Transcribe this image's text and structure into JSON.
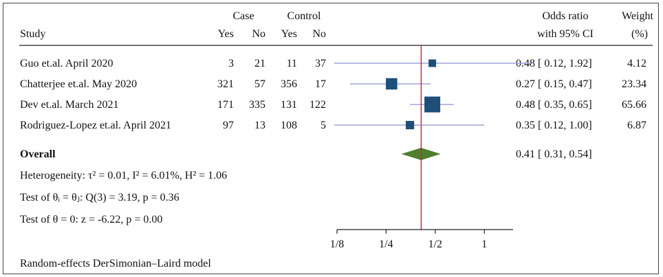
{
  "chart_data": {
    "type": "forest",
    "headers": {
      "study": "Study",
      "case": "Case",
      "control": "Control",
      "yes": "Yes",
      "no": "No",
      "or_line1": "Odds ratio",
      "or_line2": "with 95% CI",
      "weight_line1": "Weight",
      "weight_line2": "(%)"
    },
    "studies": [
      {
        "name": "Guo et.al. April 2020",
        "case_yes": "3",
        "case_no": "21",
        "ctrl_yes": "11",
        "ctrl_no": "37",
        "or": 0.48,
        "lo": 0.12,
        "hi": 1.92,
        "ci_text": "0.48 [ 0.12, 1.92]",
        "weight": 4.12,
        "weight_text": "4.12"
      },
      {
        "name": "Chatterjee et.al. May 2020",
        "case_yes": "321",
        "case_no": "57",
        "ctrl_yes": "356",
        "ctrl_no": "17",
        "or": 0.27,
        "lo": 0.15,
        "hi": 0.47,
        "ci_text": "0.27 [ 0.15, 0.47]",
        "weight": 23.34,
        "weight_text": "23.34"
      },
      {
        "name": "Dev et.al. March 2021",
        "case_yes": "171",
        "case_no": "335",
        "ctrl_yes": "131",
        "ctrl_no": "122",
        "or": 0.48,
        "lo": 0.35,
        "hi": 0.65,
        "ci_text": "0.48 [ 0.35, 0.65]",
        "weight": 65.66,
        "weight_text": "65.66"
      },
      {
        "name": "Rodriguez-Lopez et.al. April 2021",
        "case_yes": "97",
        "case_no": "13",
        "ctrl_yes": "108",
        "ctrl_no": "5",
        "or": 0.35,
        "lo": 0.12,
        "hi": 1.0,
        "ci_text": "0.35 [ 0.12, 1.00]",
        "weight": 6.87,
        "weight_text": "6.87"
      }
    ],
    "overall": {
      "label": "Overall",
      "or": 0.41,
      "lo": 0.31,
      "hi": 0.54,
      "ci_text": "0.41 [ 0.31, 0.54]"
    },
    "stats": {
      "heterogeneity": "Heterogeneity: τ² = 0.01, I² = 6.01%, H² = 1.06",
      "test_theta_i": "Test of θᵢ = θⱼ: Q(3) = 3.19, p = 0.36",
      "test_theta_0": "Test of θ = 0: z = -6.22, p = 0.00"
    },
    "x_scale": "log",
    "xlim": [
      0.125,
      1.5
    ],
    "xticks": [
      0.125,
      0.25,
      0.5,
      1
    ],
    "xtick_labels": [
      "1/8",
      "1/4",
      "1/2",
      "1"
    ],
    "reference_line": 0.41,
    "footer": "Random-effects DerSimonian–Laird model",
    "colors": {
      "ci_line": "#9fa3d6",
      "square": "#1f4e79",
      "diamond": "#4f7f2e",
      "ref_line": "#c8203a",
      "axis": "#222222"
    }
  }
}
